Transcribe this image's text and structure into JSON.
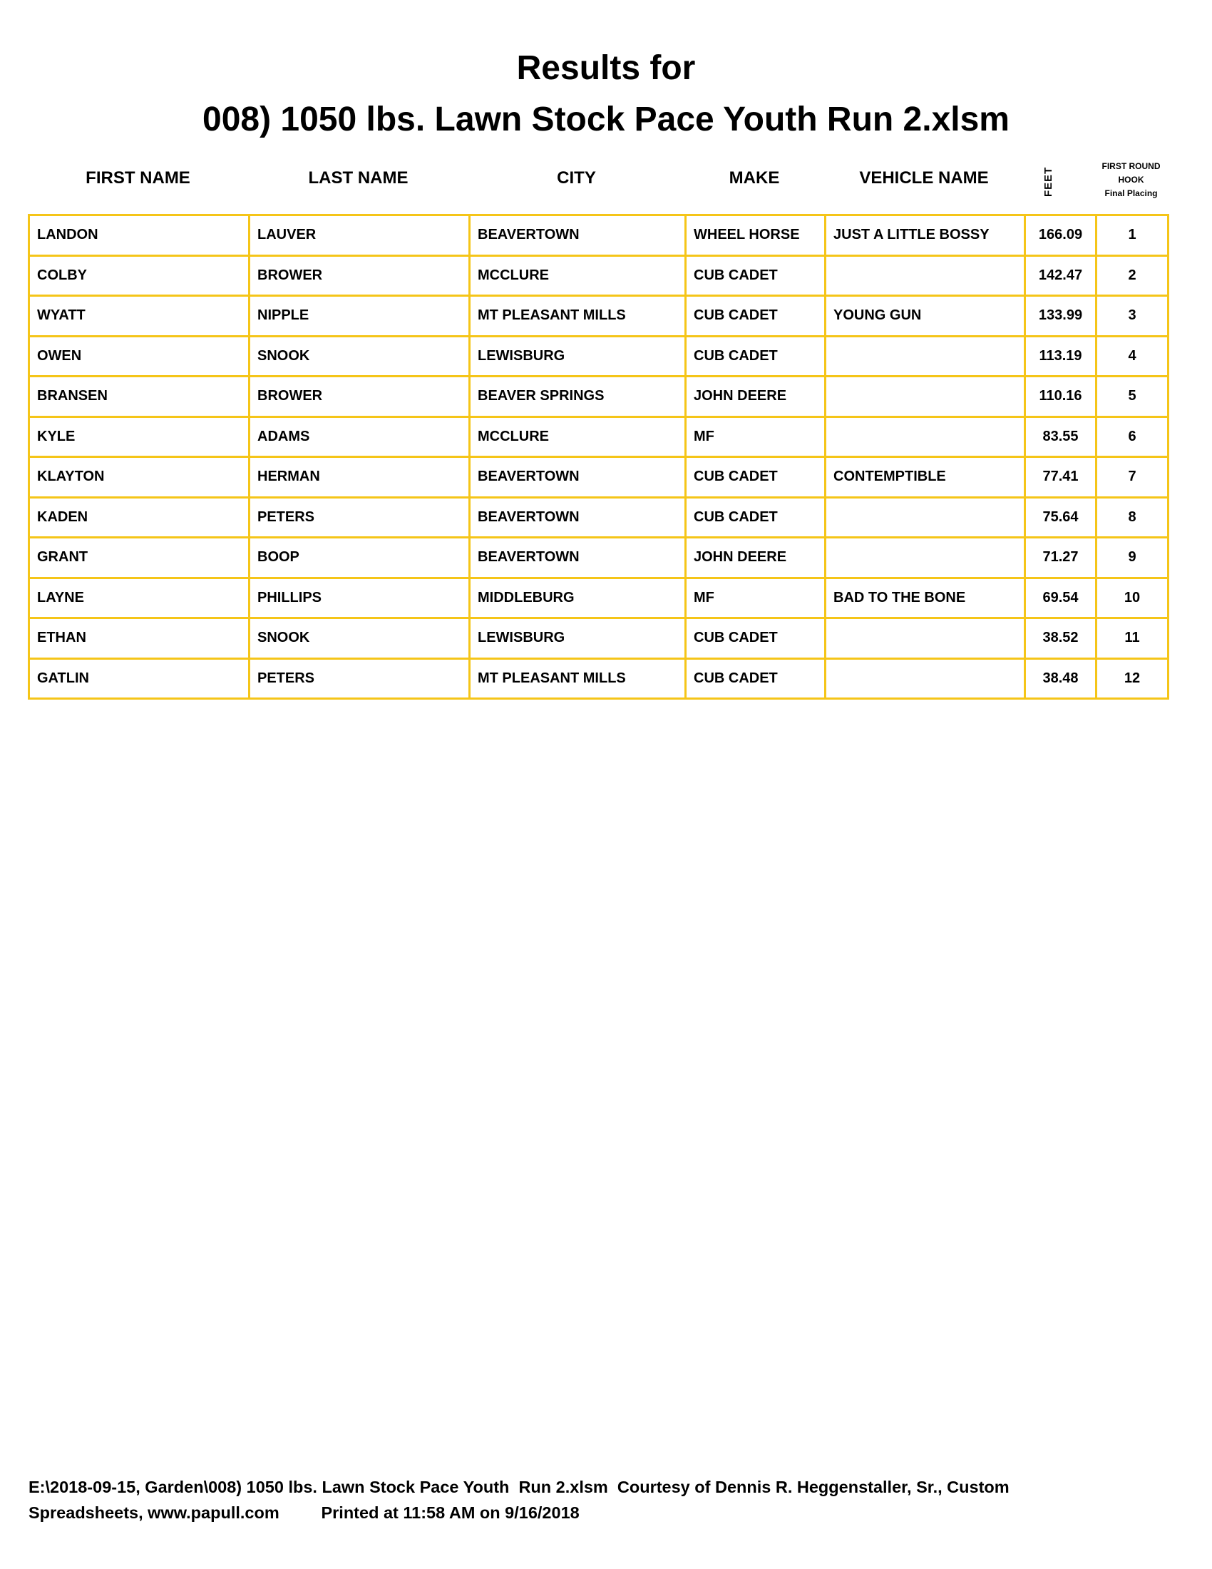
{
  "title": {
    "line1": "Results for",
    "line2": "008) 1050 lbs. Lawn Stock Pace Youth  Run 2.xlsm"
  },
  "columns": {
    "first": "FIRST NAME",
    "last": "LAST NAME",
    "city": "CITY",
    "make": "MAKE",
    "vehicle": "VEHICLE NAME",
    "feet": "FEET",
    "place1": "FIRST ROUND",
    "place2": "HOOK",
    "place3": "Final Placing"
  },
  "rows": [
    [
      "LANDON",
      "LAUVER",
      "BEAVERTOWN",
      "WHEEL HORSE",
      "JUST A LITTLE BOSSY",
      "166.09",
      "1"
    ],
    [
      "COLBY",
      "BROWER",
      "MCCLURE",
      "CUB CADET",
      "",
      "142.47",
      "2"
    ],
    [
      "WYATT",
      "NIPPLE",
      "MT PLEASANT MILLS",
      "CUB CADET",
      "YOUNG GUN",
      "133.99",
      "3"
    ],
    [
      "OWEN",
      "SNOOK",
      "LEWISBURG",
      "CUB CADET",
      "",
      "113.19",
      "4"
    ],
    [
      "BRANSEN",
      "BROWER",
      "BEAVER SPRINGS",
      "JOHN DEERE",
      "",
      "110.16",
      "5"
    ],
    [
      "KYLE",
      "ADAMS",
      "MCCLURE",
      "MF",
      "",
      "83.55",
      "6"
    ],
    [
      "KLAYTON",
      "HERMAN",
      "BEAVERTOWN",
      "CUB CADET",
      "CONTEMPTIBLE",
      "77.41",
      "7"
    ],
    [
      "KADEN",
      "PETERS",
      "BEAVERTOWN",
      "CUB CADET",
      "",
      "75.64",
      "8"
    ],
    [
      "GRANT",
      "BOOP",
      "BEAVERTOWN",
      "JOHN DEERE",
      "",
      "71.27",
      "9"
    ],
    [
      "LAYNE",
      "PHILLIPS",
      "MIDDLEBURG",
      "MF",
      "BAD TO THE BONE",
      "69.54",
      "10"
    ],
    [
      "ETHAN",
      "SNOOK",
      "LEWISBURG",
      "CUB CADET",
      "",
      "38.52",
      "11"
    ],
    [
      "GATLIN",
      "PETERS",
      "MT PLEASANT MILLS",
      "CUB CADET",
      "",
      "38.48",
      "12"
    ]
  ],
  "footer": {
    "line1": "E:\\2018-09-15, Garden\\008) 1050 lbs. Lawn Stock Pace Youth  Run 2.xlsm  Courtesy of Dennis R. Heggenstaller, Sr., Custom",
    "line2": "Spreadsheets, www.papull.com         Printed at 11:58 AM on 9/16/2018"
  },
  "colors": {
    "grid": "#F5C518"
  }
}
